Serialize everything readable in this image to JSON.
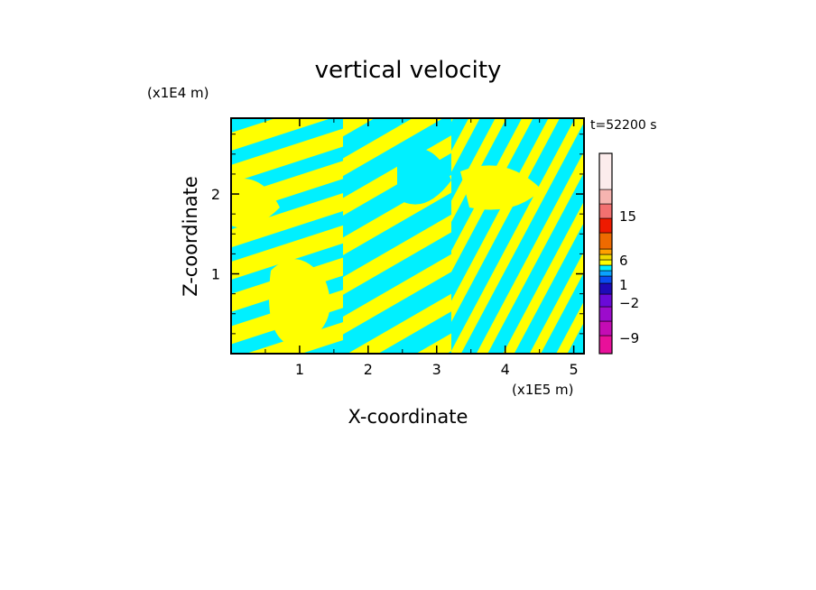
{
  "chart_data": {
    "type": "heatmap",
    "title": "vertical velocity",
    "xlabel": "X-coordinate",
    "ylabel": "Z-coordinate",
    "x_unit": "(x1E5 m)",
    "y_unit": "(x1E4 m)",
    "time_label": "t=52200 s",
    "xlim": [
      0,
      5.15
    ],
    "ylim": [
      0,
      2.95
    ],
    "x_ticks": [
      1,
      2,
      3,
      4,
      5
    ],
    "y_ticks": [
      1,
      2
    ],
    "grid": false,
    "colorbar": {
      "levels": [
        {
          "color": "#e8109a"
        },
        {
          "color": "#c40cb4"
        },
        {
          "color": "#9c0ccc"
        },
        {
          "color": "#6a0ad8"
        },
        {
          "color": "#1e0ab8"
        },
        {
          "color": "#0a4cf0"
        },
        {
          "color": "#0aa2ff"
        },
        {
          "color": "#00f0ff"
        },
        {
          "color": "#ffff00"
        },
        {
          "color": "#f0d800"
        },
        {
          "color": "#ffa000"
        },
        {
          "color": "#ee6a00"
        },
        {
          "color": "#ee1a00"
        },
        {
          "color": "#f27070"
        },
        {
          "color": "#f6b4b0"
        },
        {
          "color": "#fcecec"
        }
      ],
      "tick_labels": [
        "15",
        "6",
        "1",
        "−2",
        "−9"
      ]
    },
    "field_colors": {
      "positive": "#ffff00",
      "negative": "#00f0ff"
    }
  }
}
